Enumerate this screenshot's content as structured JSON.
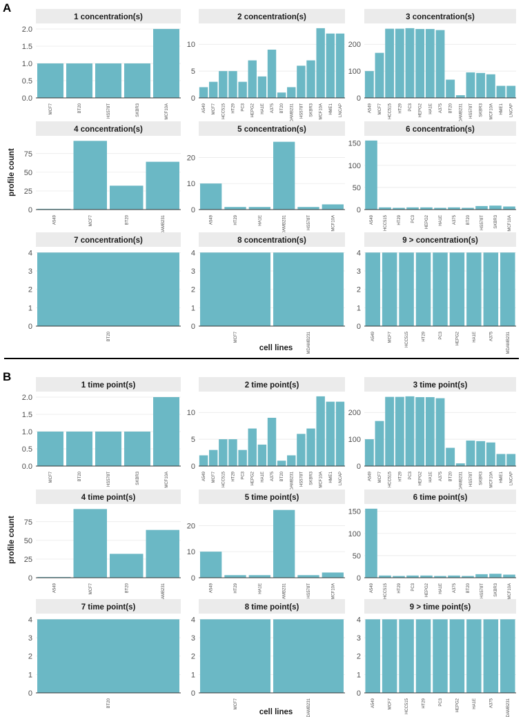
{
  "figure": {
    "bar_color": "#6bb8c5",
    "strip_color": "#ebebeb"
  },
  "chart_data": [
    {
      "section": "A",
      "type": "bar",
      "xlabel": "cell lines",
      "ylabel": "profile count",
      "facets": [
        {
          "title": "1  concentration(s)",
          "categories": [
            "MCF7",
            "BT20",
            "HS578T",
            "SKBR3",
            "MCF10A"
          ],
          "values": [
            1,
            1,
            1,
            1,
            2
          ],
          "ylim": [
            0,
            2.1
          ],
          "yticks": [
            0.0,
            0.5,
            1.0,
            1.5,
            2.0
          ],
          "ytick_labels": [
            "0.0",
            "0.5",
            "1.0",
            "1.5",
            "2.0"
          ]
        },
        {
          "title": "2  concentration(s)",
          "categories": [
            "A549",
            "MCF7",
            "HCC515",
            "HT29",
            "PC3",
            "HEPG2",
            "HA1E",
            "A375",
            "BT20",
            "MDAMB231",
            "HS578T",
            "SKBR3",
            "MCF10A",
            "HME1",
            "LNCAP"
          ],
          "values": [
            2,
            3,
            5,
            5,
            3,
            7,
            4,
            9,
            1,
            2,
            6,
            7,
            13,
            12,
            12
          ],
          "ylim": [
            0,
            13.5
          ],
          "yticks": [
            0,
            5,
            10
          ],
          "ytick_labels": [
            "0",
            "5",
            "10"
          ]
        },
        {
          "title": "3  concentration(s)",
          "categories": [
            "A549",
            "MCF7",
            "HCC515",
            "HT29",
            "PC3",
            "HEPG2",
            "HA1E",
            "A375",
            "BT20",
            "MDAMB231",
            "HS578T",
            "SKBR3",
            "MCF10A",
            "HME1",
            "LNCAP"
          ],
          "values": [
            100,
            168,
            258,
            258,
            260,
            257,
            257,
            253,
            68,
            10,
            95,
            93,
            88,
            45,
            45
          ],
          "ylim": [
            0,
            270
          ],
          "yticks": [
            0,
            100,
            200
          ],
          "ytick_labels": [
            "0",
            "100",
            "200"
          ]
        },
        {
          "title": "4  concentration(s)",
          "categories": [
            "A549",
            "MCF7",
            "BT20",
            "MDAMB231"
          ],
          "values": [
            1,
            92,
            32,
            64
          ],
          "ylim": [
            0,
            96
          ],
          "yticks": [
            0,
            25,
            50,
            75
          ],
          "ytick_labels": [
            "0",
            "25",
            "50",
            "75"
          ]
        },
        {
          "title": "5  concentration(s)",
          "categories": [
            "A549",
            "HT29",
            "HA1E",
            "MDAMB231",
            "HS578T",
            "MCF10A"
          ],
          "values": [
            10,
            1,
            1,
            26,
            1,
            2
          ],
          "ylim": [
            0,
            27.5
          ],
          "yticks": [
            0,
            10,
            20
          ],
          "ytick_labels": [
            "0",
            "10",
            "20"
          ]
        },
        {
          "title": "6  concentration(s)",
          "categories": [
            "A549",
            "HCC515",
            "HT29",
            "PC3",
            "HEPG2",
            "HA1E",
            "A375",
            "BT20",
            "HS578T",
            "SKBR3",
            "MCF10A"
          ],
          "values": [
            156,
            5,
            4,
            5,
            5,
            4,
            5,
            4,
            8,
            9,
            7
          ],
          "ylim": [
            0,
            162
          ],
          "yticks": [
            0,
            50,
            100,
            150
          ],
          "ytick_labels": [
            "0",
            "50",
            "100",
            "150"
          ]
        },
        {
          "title": "7  concentration(s)",
          "categories": [
            "BT20"
          ],
          "values": [
            4
          ],
          "ylim": [
            0,
            4.2
          ],
          "yticks": [
            0,
            1,
            2,
            3,
            4
          ],
          "ytick_labels": [
            "0",
            "1",
            "2",
            "3",
            "4"
          ]
        },
        {
          "title": "8  concentration(s)",
          "categories": [
            "MCF7",
            "MDAMB231"
          ],
          "values": [
            4,
            4
          ],
          "ylim": [
            0,
            4.2
          ],
          "yticks": [
            0,
            1,
            2,
            3,
            4
          ],
          "ytick_labels": [
            "0",
            "1",
            "2",
            "3",
            "4"
          ]
        },
        {
          "title": "9 >  concentration(s)",
          "categories": [
            "A549",
            "MCF7",
            "HCC515",
            "HT29",
            "PC3",
            "HEPG2",
            "HA1E",
            "A375",
            "MDAMB231"
          ],
          "values": [
            4,
            4,
            4,
            4,
            4,
            4,
            4,
            4,
            4
          ],
          "ylim": [
            0,
            4.2
          ],
          "yticks": [
            0,
            1,
            2,
            3,
            4
          ],
          "ytick_labels": [
            "0",
            "1",
            "2",
            "3",
            "4"
          ]
        }
      ]
    },
    {
      "section": "B",
      "type": "bar",
      "xlabel": "cell lines",
      "ylabel": "profile count",
      "facets": [
        {
          "title": "1  time point(s)",
          "categories": [
            "MCF7",
            "BT20",
            "HS578T",
            "SKBR3",
            "MCF10A"
          ],
          "values": [
            1,
            1,
            1,
            1,
            2
          ],
          "ylim": [
            0,
            2.1
          ],
          "yticks": [
            0.0,
            0.5,
            1.0,
            1.5,
            2.0
          ],
          "ytick_labels": [
            "0.0",
            "0.5",
            "1.0",
            "1.5",
            "2.0"
          ]
        },
        {
          "title": "2  time point(s)",
          "categories": [
            "A549",
            "MCF7",
            "HCC515",
            "HT29",
            "PC3",
            "HEPG2",
            "HA1E",
            "A375",
            "BT20",
            "MDAMB231",
            "HS578T",
            "SKBR3",
            "MCF10A",
            "HME1",
            "LNCAP"
          ],
          "values": [
            2,
            3,
            5,
            5,
            3,
            7,
            4,
            9,
            1,
            2,
            6,
            7,
            13,
            12,
            12
          ],
          "ylim": [
            0,
            13.5
          ],
          "yticks": [
            0,
            5,
            10
          ],
          "ytick_labels": [
            "0",
            "5",
            "10"
          ]
        },
        {
          "title": "3  time point(s)",
          "categories": [
            "A549",
            "MCF7",
            "HCC515",
            "HT29",
            "PC3",
            "HEPG2",
            "HA1E",
            "A375",
            "BT20",
            "MDAMB231",
            "HS578T",
            "SKBR3",
            "MCF10A",
            "HME1",
            "LNCAP"
          ],
          "values": [
            100,
            168,
            258,
            258,
            260,
            257,
            257,
            253,
            68,
            10,
            95,
            93,
            88,
            45,
            45
          ],
          "ylim": [
            0,
            270
          ],
          "yticks": [
            0,
            100,
            200
          ],
          "ytick_labels": [
            "0",
            "100",
            "200"
          ]
        },
        {
          "title": "4  time point(s)",
          "categories": [
            "A549",
            "MCF7",
            "BT20",
            "MDAMB231"
          ],
          "values": [
            1,
            92,
            32,
            64
          ],
          "ylim": [
            0,
            96
          ],
          "yticks": [
            0,
            25,
            50,
            75
          ],
          "ytick_labels": [
            "0",
            "25",
            "50",
            "75"
          ]
        },
        {
          "title": "5  time point(s)",
          "categories": [
            "A549",
            "HT29",
            "HA1E",
            "MDAMB231",
            "HS578T",
            "MCF10A"
          ],
          "values": [
            10,
            1,
            1,
            26,
            1,
            2
          ],
          "ylim": [
            0,
            27.5
          ],
          "yticks": [
            0,
            10,
            20
          ],
          "ytick_labels": [
            "0",
            "10",
            "20"
          ]
        },
        {
          "title": "6  time point(s)",
          "categories": [
            "A549",
            "HCC515",
            "HT29",
            "PC3",
            "HEPG2",
            "HA1E",
            "A375",
            "BT20",
            "HS578T",
            "SKBR3",
            "MCF10A"
          ],
          "values": [
            156,
            5,
            4,
            5,
            5,
            4,
            5,
            4,
            8,
            9,
            7
          ],
          "ylim": [
            0,
            162
          ],
          "yticks": [
            0,
            50,
            100,
            150
          ],
          "ytick_labels": [
            "0",
            "50",
            "100",
            "150"
          ]
        },
        {
          "title": "7  time point(s)",
          "categories": [
            "BT20"
          ],
          "values": [
            4
          ],
          "ylim": [
            0,
            4.2
          ],
          "yticks": [
            0,
            1,
            2,
            3,
            4
          ],
          "ytick_labels": [
            "0",
            "1",
            "2",
            "3",
            "4"
          ]
        },
        {
          "title": "8  time point(s)",
          "categories": [
            "MCF7",
            "MDAMB231"
          ],
          "values": [
            4,
            4
          ],
          "ylim": [
            0,
            4.2
          ],
          "yticks": [
            0,
            1,
            2,
            3,
            4
          ],
          "ytick_labels": [
            "0",
            "1",
            "2",
            "3",
            "4"
          ]
        },
        {
          "title": "9 >  time point(s)",
          "categories": [
            "A549",
            "MCF7",
            "HCC515",
            "HT29",
            "PC3",
            "HEPG2",
            "HA1E",
            "A375",
            "MDAMB231"
          ],
          "values": [
            4,
            4,
            4,
            4,
            4,
            4,
            4,
            4,
            4
          ],
          "ylim": [
            0,
            4.2
          ],
          "yticks": [
            0,
            1,
            2,
            3,
            4
          ],
          "ytick_labels": [
            "0",
            "1",
            "2",
            "3",
            "4"
          ]
        }
      ]
    }
  ]
}
